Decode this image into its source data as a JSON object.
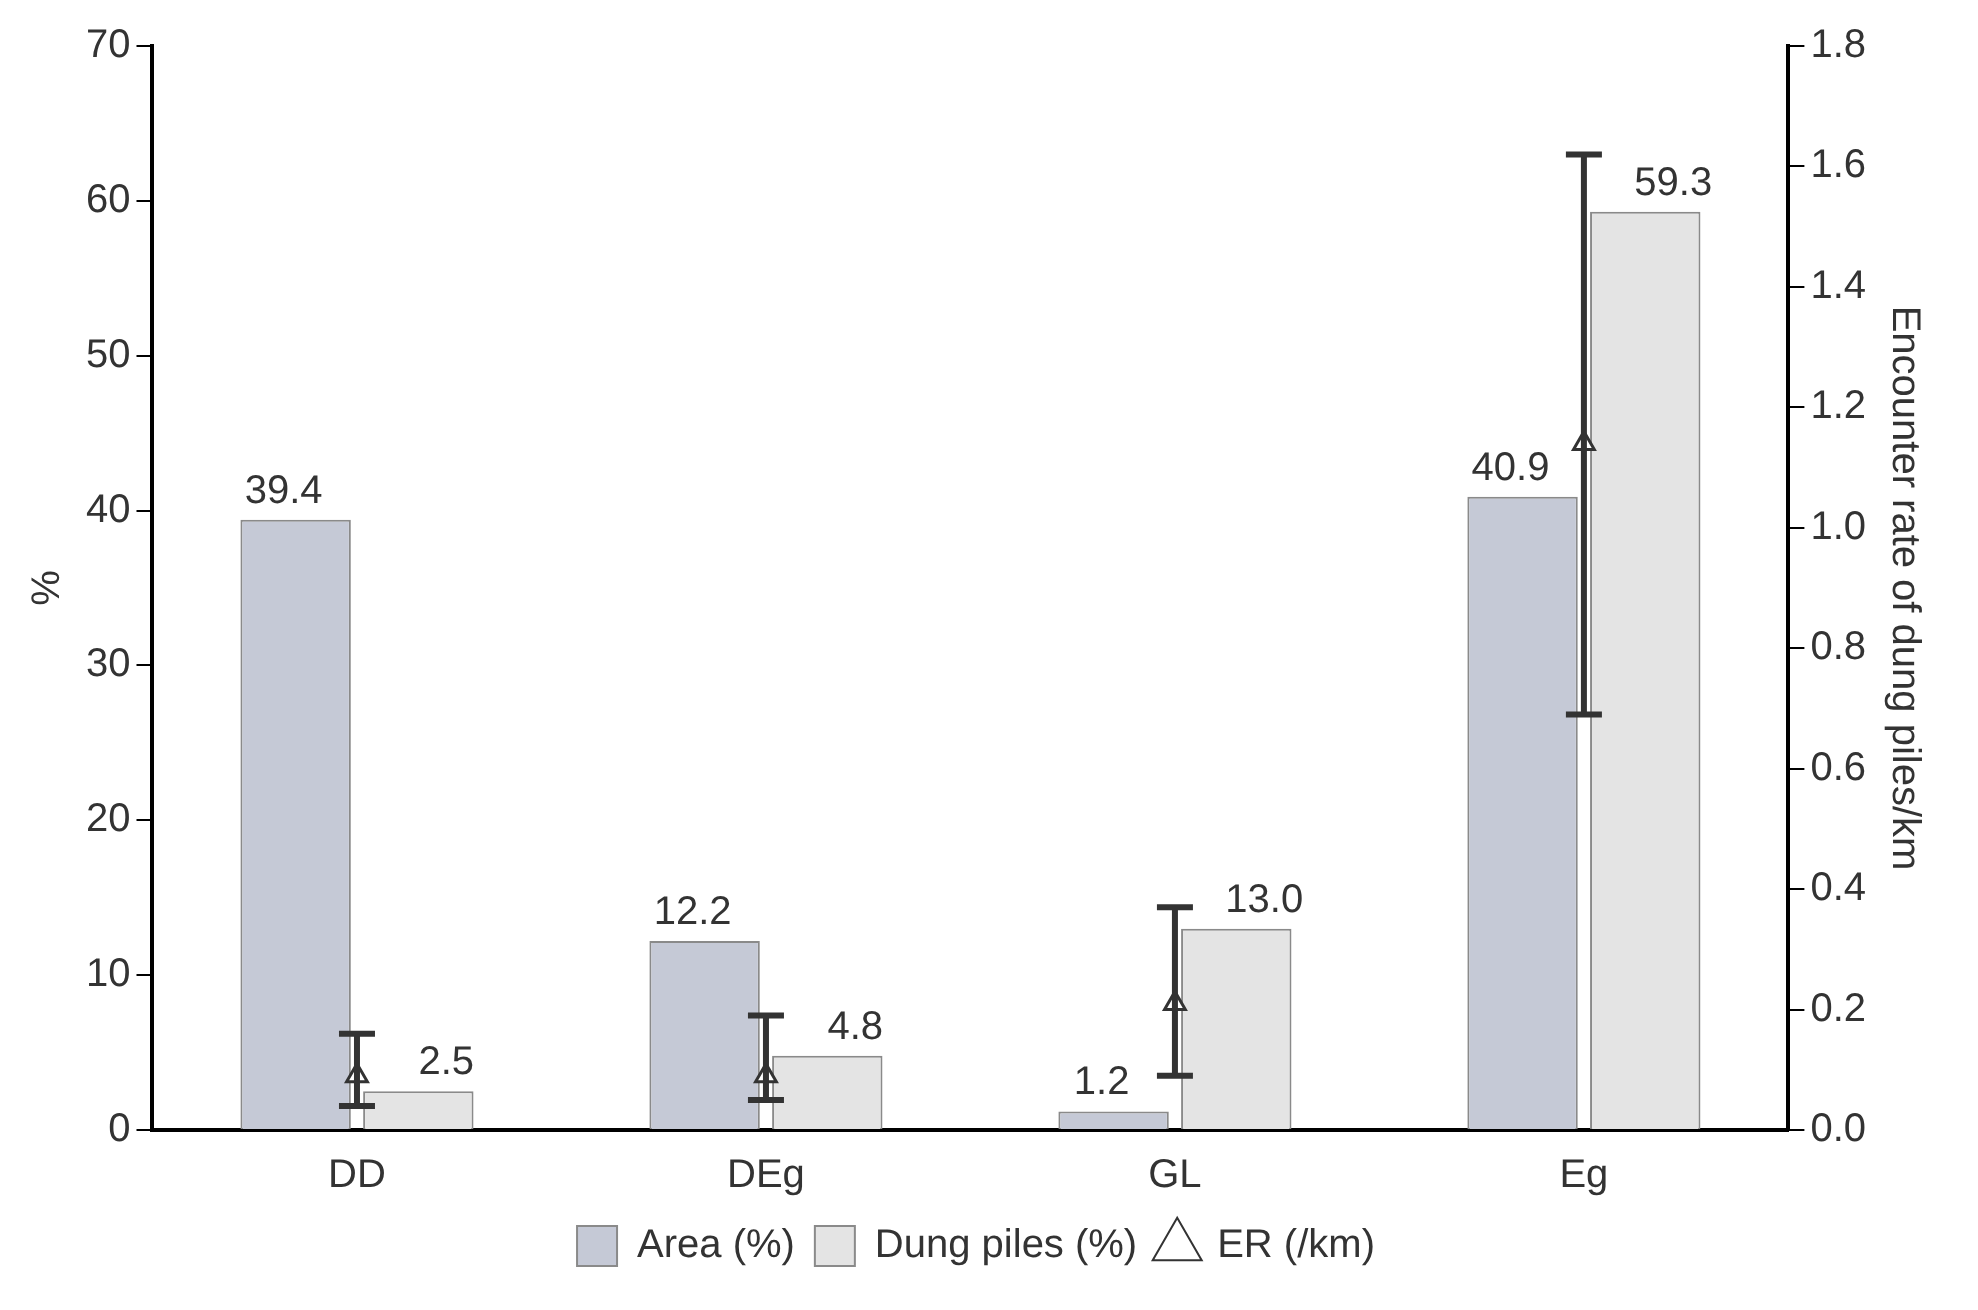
{
  "chart_data": {
    "type": "bar",
    "categories": [
      "DD",
      "DEg",
      "GL",
      "Eg"
    ],
    "ylabel": "%",
    "y2label": "Encounter rate of dung piles/km",
    "series": [
      {
        "name": "Area (%)",
        "color": "#c5c9d6",
        "values": [
          39.4,
          12.2,
          1.2,
          40.9
        ],
        "value_labels": [
          "39.4",
          "12.2",
          "1.2",
          "40.9"
        ]
      },
      {
        "name": "Dung piles (%)",
        "color": "#e4e4e4",
        "values": [
          2.5,
          4.8,
          13.0,
          59.3
        ],
        "value_labels": [
          "2.5",
          "4.8",
          "13.0",
          "59.3"
        ]
      },
      {
        "name": "ER (/km)",
        "type": "scatter",
        "axis": "y2",
        "color": "#333333",
        "marker": "triangle",
        "values": [
          0.09,
          0.09,
          0.21,
          1.14
        ],
        "errors": [
          [
            0.04,
            0.16
          ],
          [
            0.05,
            0.19
          ],
          [
            0.09,
            0.37
          ],
          [
            0.69,
            1.62
          ]
        ]
      }
    ],
    "legend": "bottom",
    "grid": false,
    "ylim": [
      0,
      70
    ],
    "yticks": [
      0,
      10,
      20,
      30,
      40,
      50,
      60,
      70
    ],
    "y2lim": [
      0,
      1.8
    ],
    "y2ticks": [
      {
        "value": 0,
        "label": "0.0"
      },
      {
        "value": 0.2,
        "label": "0.2"
      },
      {
        "value": 0.4,
        "label": "0.4"
      },
      {
        "value": 0.6,
        "label": "0.6"
      },
      {
        "value": 0.8,
        "label": "0.8"
      },
      {
        "value": 1,
        "label": "1.0"
      },
      {
        "value": 1.2,
        "label": "1.2"
      },
      {
        "value": 1.4,
        "label": "1.4"
      },
      {
        "value": 1.6,
        "label": "1.6"
      },
      {
        "value": 1.8,
        "label": "1.8"
      }
    ]
  }
}
